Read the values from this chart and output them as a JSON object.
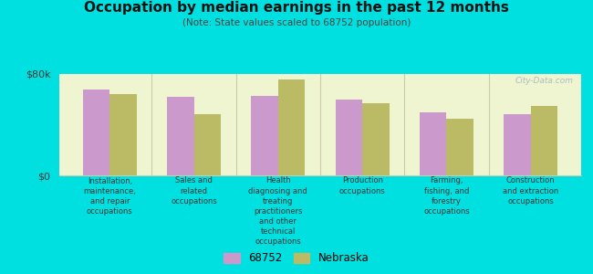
{
  "title": "Occupation by median earnings in the past 12 months",
  "subtitle": "(Note: State values scaled to 68752 population)",
  "background_color": "#00e0e0",
  "plot_bg_color": "#eef5d0",
  "categories": [
    "Installation,\nmaintenance,\nand repair\noccupations",
    "Sales and\nrelated\noccupations",
    "Health\ndiagnosing and\ntreating\npractitioners\nand other\ntechnical\noccupations",
    "Production\noccupations",
    "Farming,\nfishing, and\nforestry\noccupations",
    "Construction\nand extraction\noccupations"
  ],
  "values_68752": [
    68000,
    62000,
    63000,
    60000,
    50000,
    48000
  ],
  "values_nebraska": [
    64000,
    48000,
    76000,
    57000,
    45000,
    55000
  ],
  "color_68752": "#cc99cc",
  "color_nebraska": "#bbbb66",
  "ylabel_top": "$80k",
  "ylabel_bottom": "$0",
  "ymax": 80000,
  "legend_label_1": "68752",
  "legend_label_2": "Nebraska",
  "divider_color": "#ccccaa",
  "watermark": "City-Data.com"
}
